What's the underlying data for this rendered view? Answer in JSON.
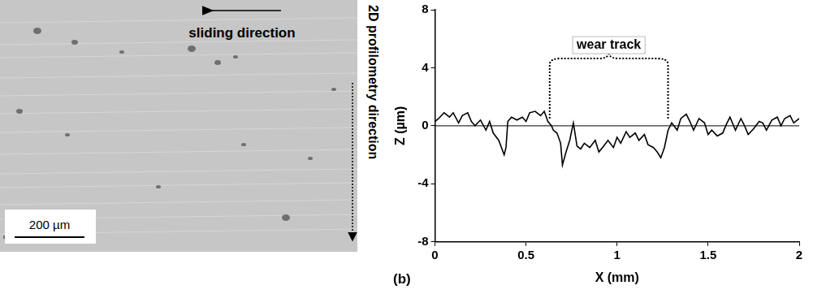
{
  "chart_data": {
    "type": "line",
    "x_label": "X (mm)",
    "y_label": "Z (µm)",
    "x": [
      0,
      0.02,
      0.05,
      0.08,
      0.1,
      0.13,
      0.15,
      0.18,
      0.2,
      0.22,
      0.25,
      0.28,
      0.3,
      0.32,
      0.35,
      0.38,
      0.39,
      0.4,
      0.42,
      0.45,
      0.48,
      0.5,
      0.52,
      0.55,
      0.58,
      0.6,
      0.62,
      0.64,
      0.65,
      0.67,
      0.69,
      0.7,
      0.72,
      0.74,
      0.76,
      0.78,
      0.8,
      0.82,
      0.85,
      0.88,
      0.9,
      0.92,
      0.95,
      0.98,
      1.0,
      1.02,
      1.05,
      1.07,
      1.1,
      1.12,
      1.15,
      1.17,
      1.2,
      1.22,
      1.24,
      1.26,
      1.28,
      1.3,
      1.33,
      1.35,
      1.38,
      1.4,
      1.42,
      1.45,
      1.48,
      1.5,
      1.52,
      1.55,
      1.58,
      1.6,
      1.62,
      1.65,
      1.68,
      1.7,
      1.72,
      1.75,
      1.78,
      1.8,
      1.82,
      1.85,
      1.88,
      1.9,
      1.92,
      1.95,
      1.97,
      2.0
    ],
    "values": [
      0.3,
      0.5,
      0.9,
      0.6,
      0.9,
      0.2,
      0.7,
      0.9,
      0.3,
      0,
      0.4,
      -0.3,
      0.3,
      -0.5,
      -1.0,
      -2.0,
      -1.5,
      0.3,
      0.6,
      0.4,
      0.6,
      0.3,
      0.9,
      1.0,
      0.7,
      1.0,
      0.3,
      0.0,
      -0.3,
      -0.5,
      -1.2,
      -2.7,
      -1.8,
      -1.0,
      0.2,
      -1.4,
      -1.6,
      -1.2,
      -1.5,
      -1.0,
      -1.8,
      -1.5,
      -1.0,
      -1.5,
      -0.8,
      -1.2,
      -0.4,
      -0.8,
      -0.5,
      -1.0,
      -0.6,
      -1.3,
      -1.5,
      -1.8,
      -2.2,
      -1.5,
      -0.3,
      0.2,
      -0.3,
      0.5,
      0.8,
      0.3,
      -0.3,
      0.5,
      0.2,
      -0.6,
      -0.3,
      -0.7,
      -0.5,
      0.1,
      0.6,
      -0.3,
      0.5,
      0.0,
      -0.6,
      -0.2,
      0.3,
      0.2,
      -0.3,
      0.4,
      0.6,
      0.0,
      0.5,
      0.7,
      0.2,
      0.5
    ],
    "color": "#000000",
    "xlim": [
      0,
      2
    ],
    "xticks": [
      0,
      0.5,
      1,
      1.5,
      2
    ],
    "ylim": [
      -8,
      8
    ],
    "yticks": [
      -8,
      -4,
      0,
      4,
      8
    ],
    "grid": false,
    "annotations": [
      {
        "text": "wear track",
        "x": [
          0.63,
          1.28
        ],
        "y": [
          0.5,
          4.3
        ]
      }
    ]
  },
  "micrograph": {
    "labels": [
      "sliding direction",
      "2D profilometry direction"
    ],
    "scale_bar": "200 µm"
  },
  "panel_label": "(b)"
}
